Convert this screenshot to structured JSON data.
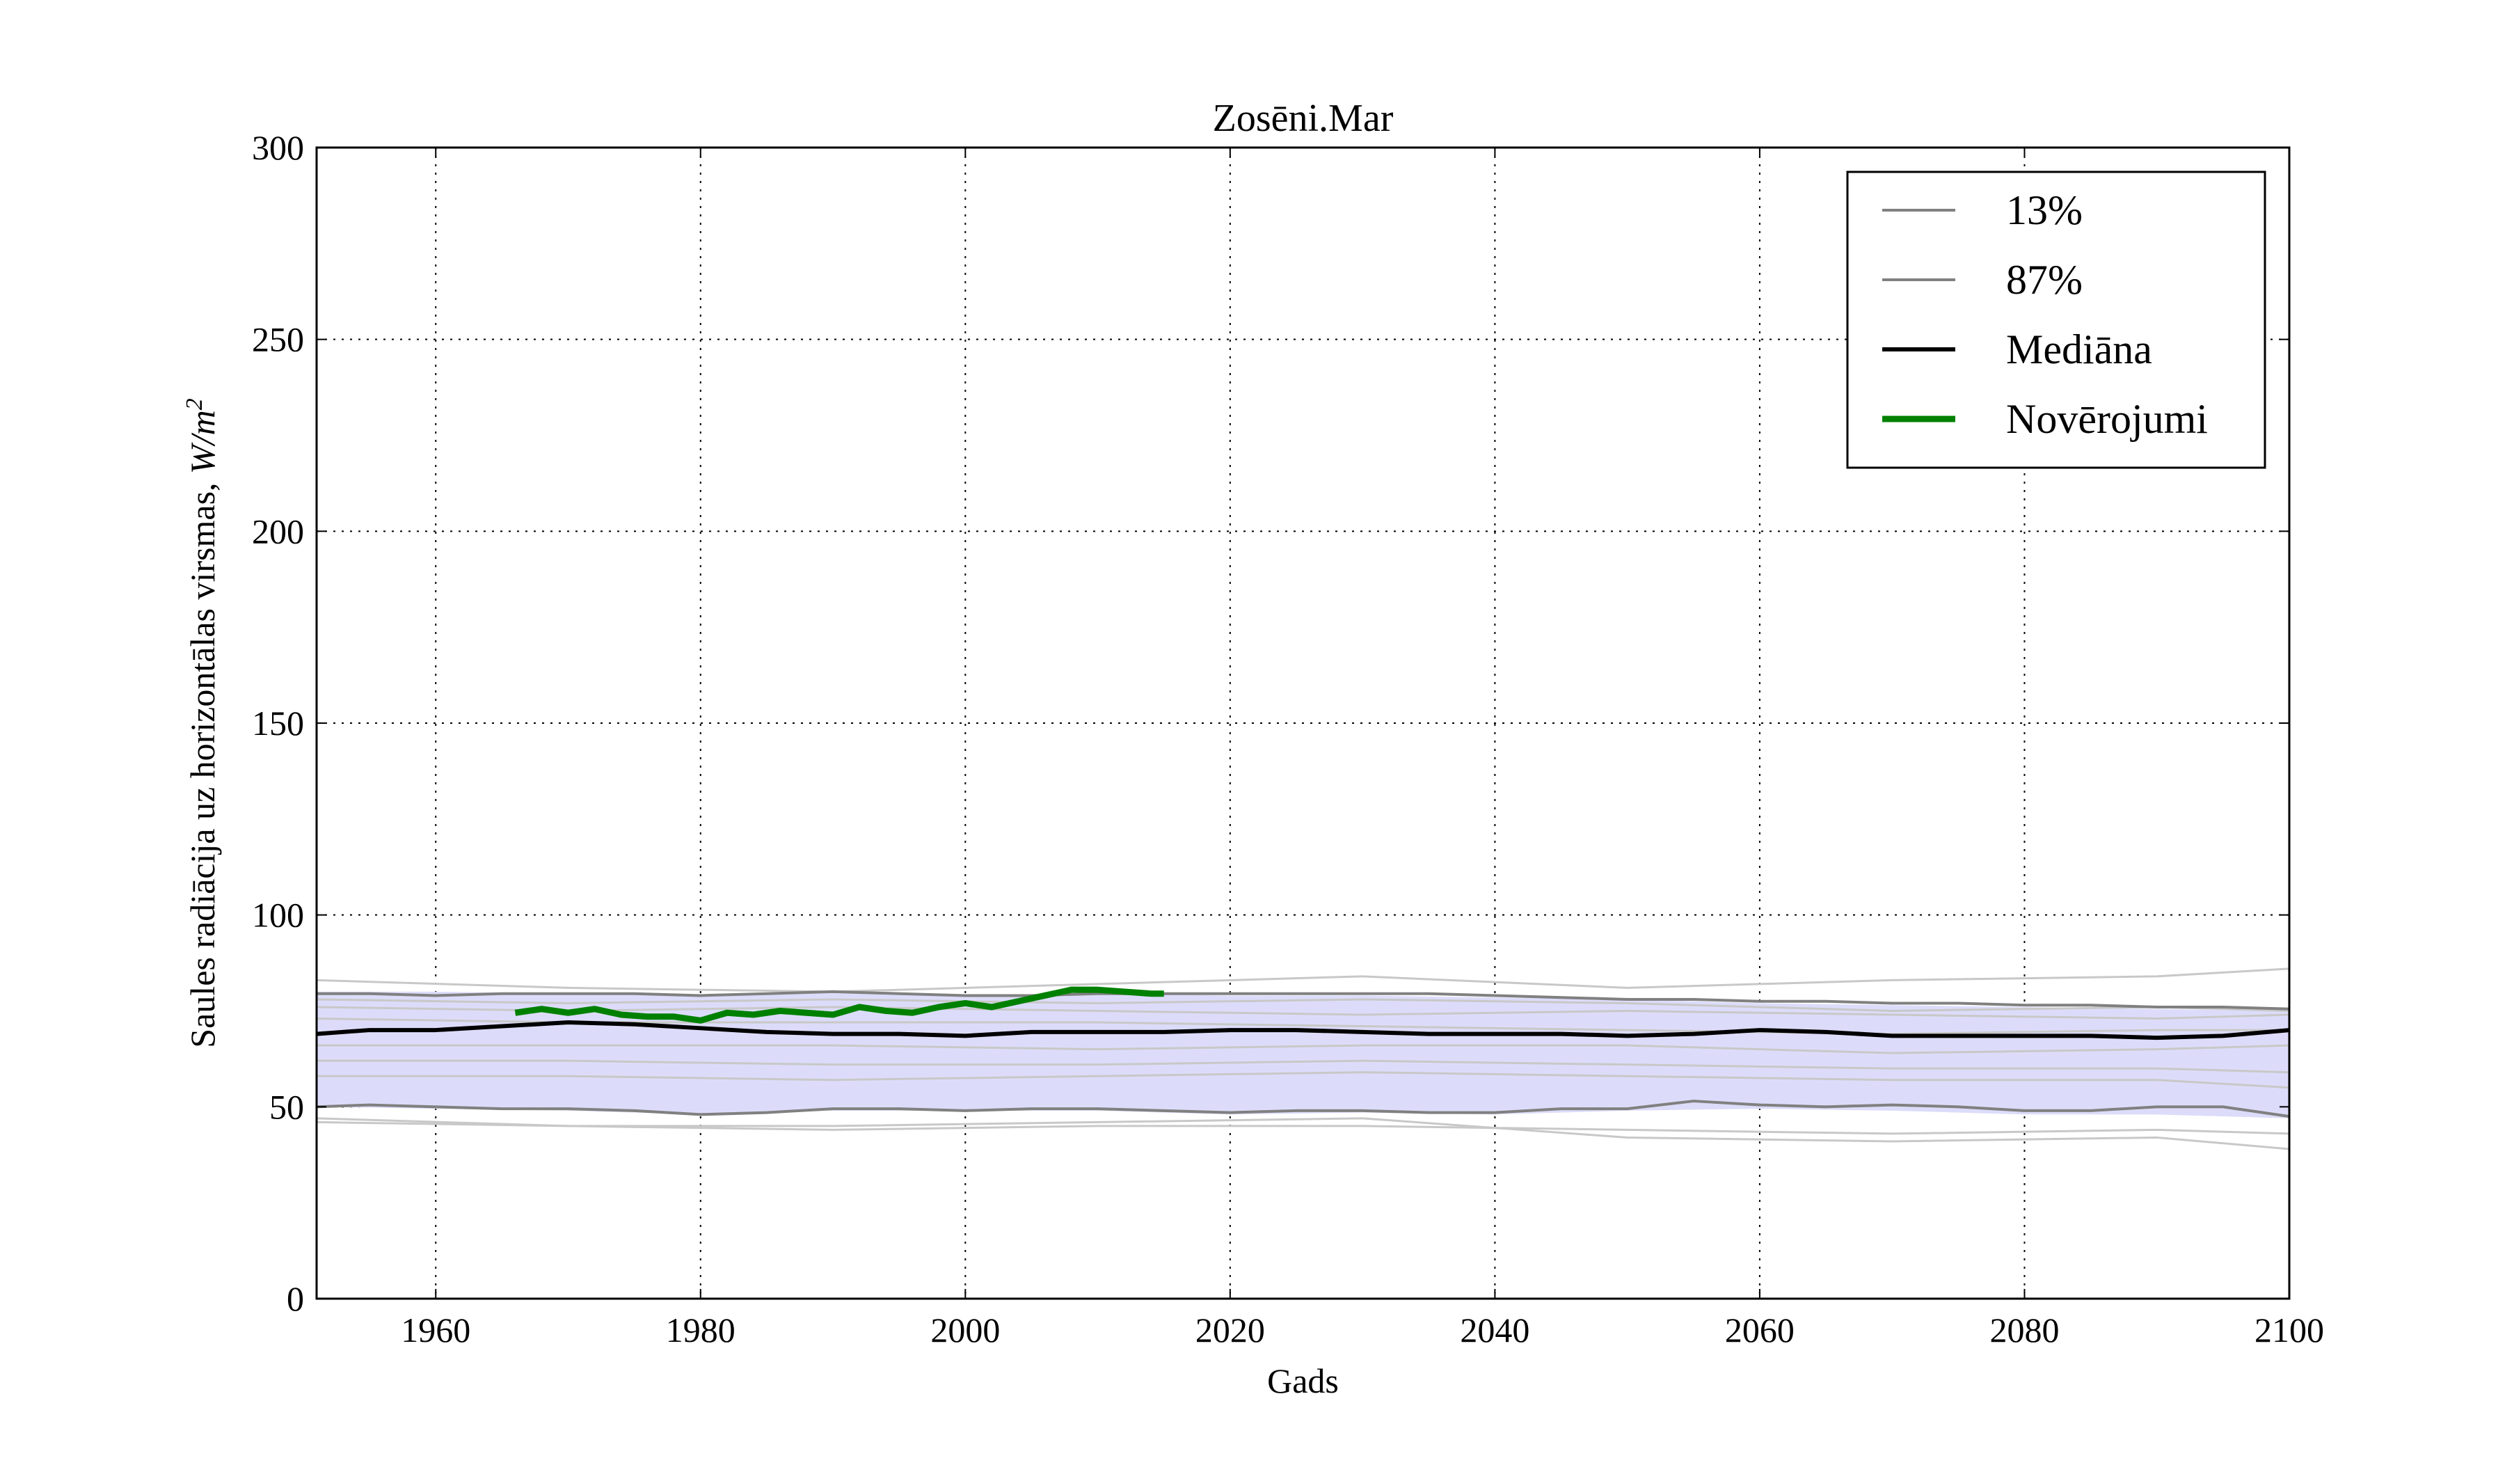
{
  "chart_data": {
    "type": "line",
    "title": "Zosēni.Mar",
    "xlabel": "Gads",
    "ylabel": "Saules radiācija uz horizontālas virsmas, ",
    "ylabel_unit": "W/m",
    "ylabel_unit_exp": "2",
    "xlim": [
      1951,
      2100
    ],
    "ylim": [
      0,
      300
    ],
    "xticks": [
      1960,
      1980,
      2000,
      2020,
      2040,
      2060,
      2080,
      2100
    ],
    "yticks": [
      0,
      50,
      100,
      150,
      200,
      250,
      300
    ],
    "grid": true,
    "legend_position": "top-right",
    "colors": {
      "band": "#dcdcfa",
      "ensemble": "#c8c8c8",
      "percentile": "#808080",
      "median": "#000000",
      "observations": "#008000"
    },
    "band": {
      "x": [
        1951,
        1960,
        1970,
        1980,
        1990,
        2000,
        2010,
        2020,
        2030,
        2040,
        2050,
        2060,
        2070,
        2080,
        2090,
        2100
      ],
      "lower": [
        50,
        49.5,
        49,
        48,
        49,
        49,
        49,
        48,
        48.5,
        48,
        49,
        49.5,
        49,
        48,
        48,
        47
      ],
      "upper": [
        80,
        80,
        79.5,
        79,
        80,
        79,
        79.5,
        79,
        79,
        78.5,
        78,
        77,
        76.5,
        76,
        75.5,
        75
      ]
    },
    "ensemble_members": [
      {
        "x": [
          1951,
          1970,
          1990,
          2010,
          2030,
          2050,
          2070,
          2090,
          2100
        ],
        "values": [
          83,
          81,
          80,
          82,
          84,
          81,
          83,
          84,
          86
        ]
      },
      {
        "x": [
          1951,
          1970,
          1990,
          2010,
          2030,
          2050,
          2070,
          2090,
          2100
        ],
        "values": [
          47,
          45,
          45,
          46,
          47,
          42,
          41,
          42,
          39
        ]
      },
      {
        "x": [
          1951,
          1970,
          1990,
          2010,
          2030,
          2050,
          2070,
          2090,
          2100
        ],
        "values": [
          46,
          45,
          44,
          45,
          45,
          44,
          43,
          44,
          43
        ]
      },
      {
        "x": [
          1951,
          1970,
          1990,
          2010,
          2030,
          2050,
          2070,
          2090,
          2100
        ],
        "values": [
          76,
          75,
          76,
          75,
          74,
          75,
          74,
          73,
          74
        ]
      },
      {
        "x": [
          1951,
          1970,
          1990,
          2010,
          2030,
          2050,
          2070,
          2090,
          2100
        ],
        "values": [
          73,
          72,
          72,
          72,
          71,
          70,
          69,
          70,
          70
        ]
      },
      {
        "x": [
          1951,
          1970,
          1990,
          2010,
          2030,
          2050,
          2070,
          2090,
          2100
        ],
        "values": [
          66,
          66,
          66,
          65,
          66,
          66,
          64,
          65,
          66
        ]
      },
      {
        "x": [
          1951,
          1970,
          1990,
          2010,
          2030,
          2050,
          2070,
          2090,
          2100
        ],
        "values": [
          62,
          62,
          61,
          61,
          62,
          61,
          60,
          60,
          59
        ]
      },
      {
        "x": [
          1951,
          1970,
          1990,
          2010,
          2030,
          2050,
          2070,
          2090,
          2100
        ],
        "values": [
          58,
          58,
          57,
          58,
          59,
          58,
          57,
          57,
          55
        ]
      },
      {
        "x": [
          1951,
          1970,
          1990,
          2010,
          2030,
          2050,
          2070,
          2090,
          2100
        ],
        "values": [
          78,
          77,
          78,
          77,
          78,
          77,
          75,
          76,
          75
        ]
      }
    ],
    "series": [
      {
        "name": "13%",
        "x": [
          1951,
          1955,
          1960,
          1965,
          1970,
          1975,
          1980,
          1985,
          1990,
          1995,
          2000,
          2005,
          2010,
          2015,
          2020,
          2025,
          2030,
          2035,
          2040,
          2045,
          2050,
          2055,
          2060,
          2065,
          2070,
          2075,
          2080,
          2085,
          2090,
          2095,
          2100
        ],
        "values": [
          50,
          50.5,
          50,
          49.5,
          49.5,
          49,
          48,
          48.5,
          49.5,
          49.5,
          49,
          49.5,
          49.5,
          49,
          48.5,
          49,
          49,
          48.5,
          48.5,
          49.5,
          49.5,
          51.5,
          50.5,
          50,
          50.5,
          50,
          49,
          49,
          50,
          50,
          47.5
        ]
      },
      {
        "name": "87%",
        "x": [
          1951,
          1955,
          1960,
          1965,
          1970,
          1975,
          1980,
          1985,
          1990,
          1995,
          2000,
          2005,
          2010,
          2015,
          2020,
          2025,
          2030,
          2035,
          2040,
          2045,
          2050,
          2055,
          2060,
          2065,
          2070,
          2075,
          2080,
          2085,
          2090,
          2095,
          2100
        ],
        "values": [
          79.5,
          79.5,
          79,
          79.5,
          79.5,
          79.5,
          79,
          79.5,
          80,
          79.5,
          79,
          79,
          79.5,
          79.5,
          79.5,
          79.5,
          79.5,
          79.5,
          79,
          78.5,
          78,
          78,
          77.5,
          77.5,
          77,
          77,
          76.5,
          76.5,
          76,
          76,
          75.5
        ]
      },
      {
        "name": "Mediāna",
        "x": [
          1951,
          1955,
          1960,
          1965,
          1970,
          1975,
          1980,
          1985,
          1990,
          1995,
          2000,
          2005,
          2010,
          2015,
          2020,
          2025,
          2030,
          2035,
          2040,
          2045,
          2050,
          2055,
          2060,
          2065,
          2070,
          2075,
          2080,
          2085,
          2090,
          2095,
          2100
        ],
        "values": [
          69,
          70,
          70,
          71,
          72,
          71.5,
          70.5,
          69.5,
          69,
          69,
          68.5,
          69.5,
          69.5,
          69.5,
          70,
          70,
          69.5,
          69,
          69,
          69,
          68.5,
          69,
          70,
          69.5,
          68.5,
          68.5,
          68.5,
          68.5,
          68,
          68.5,
          70
        ]
      },
      {
        "name": "Novērojumi",
        "x": [
          1966,
          1968,
          1970,
          1972,
          1974,
          1976,
          1978,
          1980,
          1982,
          1984,
          1986,
          1988,
          1990,
          1992,
          1994,
          1996,
          1998,
          2000,
          2002,
          2004,
          2006,
          2008,
          2010,
          2012,
          2014,
          2015
        ],
        "values": [
          74.5,
          75.5,
          74.5,
          75.5,
          74,
          73.5,
          73.5,
          72.5,
          74.5,
          74,
          75,
          74.5,
          74,
          76,
          75,
          74.5,
          76,
          77,
          76,
          77.5,
          79,
          80.5,
          80.5,
          80,
          79.5,
          79.5
        ]
      }
    ]
  }
}
